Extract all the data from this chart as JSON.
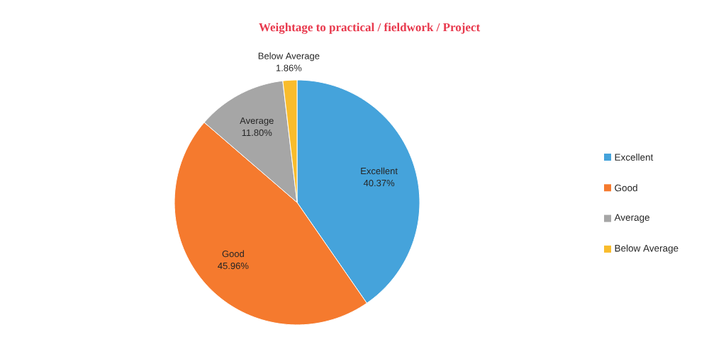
{
  "chart_data": {
    "type": "pie",
    "title": "Weightage to practical / fieldwork / Project",
    "categories": [
      "Excellent",
      "Good",
      "Average",
      "Below Average"
    ],
    "values": [
      40.37,
      45.96,
      11.8,
      1.86
    ],
    "value_labels": [
      "40.37%",
      "45.96%",
      "11.80%",
      "1.86%"
    ],
    "colors": [
      "#45a3db",
      "#f57a2e",
      "#a6a6a6",
      "#f9bc2c"
    ],
    "legend": "right"
  }
}
